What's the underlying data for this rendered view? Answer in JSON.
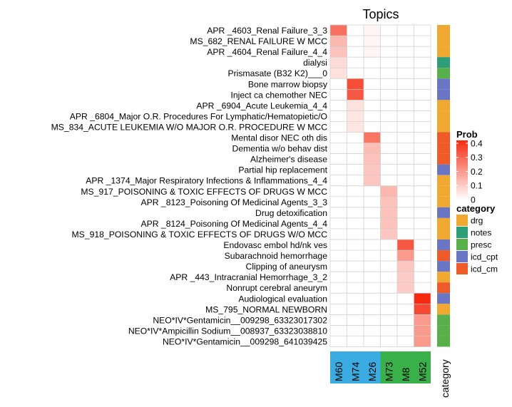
{
  "chart_data": {
    "type": "heatmap",
    "title": "Topics",
    "columns": [
      "M60",
      "M74",
      "M26",
      "M73",
      "M8",
      "M52"
    ],
    "column_groups": [
      {
        "columns": [
          "M60",
          "M74",
          "M26"
        ],
        "color": "#3aace2"
      },
      {
        "columns": [
          "M73",
          "M8",
          "M52"
        ],
        "color": "#3ab04a"
      }
    ],
    "rows": [
      {
        "label": "APR _4603_Renal Failure_3_3",
        "category": "drg",
        "values": [
          0.28,
          0,
          0.02,
          0,
          0,
          0
        ]
      },
      {
        "label": "MS_682_RENAL FAILURE W MCC",
        "category": "drg",
        "values": [
          0.14,
          0,
          0.02,
          0,
          0,
          0
        ]
      },
      {
        "label": "APR _4604_Renal Failure_4_4",
        "category": "drg",
        "values": [
          0.12,
          0,
          0.02,
          0,
          0,
          0
        ]
      },
      {
        "label": "dialysi",
        "category": "notes",
        "values": [
          0.07,
          0,
          0,
          0,
          0,
          0
        ]
      },
      {
        "label": "Prismasate (B32 K2)___0",
        "category": "presc",
        "values": [
          0.06,
          0,
          0,
          0,
          0,
          0
        ]
      },
      {
        "label": "Bone marrow biopsy",
        "category": "icd_cpt",
        "values": [
          0,
          0.35,
          0,
          0,
          0,
          0
        ]
      },
      {
        "label": "Inject ca chemother NEC",
        "category": "icd_cpt",
        "values": [
          0,
          0.33,
          0,
          0,
          0,
          0
        ]
      },
      {
        "label": "APR _6904_Acute Leukemia_4_4",
        "category": "drg",
        "values": [
          0,
          0.06,
          0,
          0,
          0,
          0
        ]
      },
      {
        "label": "APR _6804_Major O.R. Procedures For Lymphatic/Hematopietic/O",
        "category": "drg",
        "values": [
          0,
          0.05,
          0,
          0,
          0,
          0
        ]
      },
      {
        "label": "MS_834_ACUTE LEUKEMIA W/O MAJOR O.R. PROCEDURE W MCC",
        "category": "drg",
        "values": [
          0,
          0.05,
          0,
          0,
          0,
          0
        ]
      },
      {
        "label": "Mental disor NEC oth dis",
        "category": "icd_cm",
        "values": [
          0,
          0,
          0.27,
          0,
          0,
          0
        ]
      },
      {
        "label": "Dementia w/o behav dist",
        "category": "icd_cm",
        "values": [
          0,
          0,
          0.13,
          0,
          0,
          0
        ]
      },
      {
        "label": "Alzheimer's disease",
        "category": "icd_cm",
        "values": [
          0,
          0,
          0.12,
          0,
          0,
          0
        ]
      },
      {
        "label": "Partial hip replacement",
        "category": "icd_cpt",
        "values": [
          0,
          0,
          0.11,
          0,
          0,
          0
        ]
      },
      {
        "label": "APR _1374_Major Respiratory Infections & Inflammations_4_4",
        "category": "drg",
        "values": [
          0,
          0,
          0.11,
          0,
          0,
          0
        ]
      },
      {
        "label": "MS_917_POISONING & TOXIC EFFECTS OF DRUGS W MCC",
        "category": "drg",
        "values": [
          0,
          0,
          0,
          0.14,
          0,
          0
        ]
      },
      {
        "label": "APR _8123_Poisoning Of Medicinal Agents_3_3",
        "category": "drg",
        "values": [
          0,
          0,
          0,
          0.12,
          0,
          0
        ]
      },
      {
        "label": "Drug detoxification",
        "category": "icd_cpt",
        "values": [
          0,
          0,
          0,
          0.12,
          0,
          0
        ]
      },
      {
        "label": "APR _8124_Poisoning Of Medicinal Agents_4_4",
        "category": "drg",
        "values": [
          0,
          0,
          0,
          0.12,
          0,
          0
        ]
      },
      {
        "label": "MS_918_POISONING & TOXIC EFFECTS OF DRUGS W/O MCC",
        "category": "drg",
        "values": [
          0,
          0,
          0,
          0.11,
          0,
          0
        ]
      },
      {
        "label": "Endovasc embol hd/nk ves",
        "category": "icd_cpt",
        "values": [
          0,
          0,
          0,
          0,
          0.33,
          0
        ]
      },
      {
        "label": "Subarachnoid hemorrhage",
        "category": "icd_cm",
        "values": [
          0,
          0,
          0,
          0,
          0.2,
          0
        ]
      },
      {
        "label": "Clipping of aneurysm",
        "category": "icd_cpt",
        "values": [
          0,
          0,
          0,
          0,
          0.11,
          0
        ]
      },
      {
        "label": "APR _443_Intracranial Hemorrhage_3_2",
        "category": "drg",
        "values": [
          0,
          0,
          0,
          0,
          0.1,
          0
        ]
      },
      {
        "label": "Nonrupt cerebral aneurym",
        "category": "icd_cm",
        "values": [
          0,
          0,
          0,
          0,
          0.1,
          0
        ]
      },
      {
        "label": "Audiological evaluation",
        "category": "icd_cpt",
        "values": [
          0,
          0,
          0,
          0,
          0,
          0.42
        ]
      },
      {
        "label": "MS_795_NORMAL NEWBORN",
        "category": "drg",
        "values": [
          0,
          0,
          0,
          0,
          0,
          0.36
        ]
      },
      {
        "label": "NEO*IV*Gentamicin__009298_63323017302",
        "category": "presc",
        "values": [
          0,
          0,
          0,
          0,
          0,
          0.2
        ]
      },
      {
        "label": "NEO*IV*Ampicillin Sodium__008937_63323038810",
        "category": "presc",
        "values": [
          0,
          0,
          0,
          0,
          0,
          0.2
        ]
      },
      {
        "label": "NEO*IV*Gentamicin__009298_641039425",
        "category": "presc",
        "values": [
          0,
          0,
          0,
          0,
          0,
          0.2
        ]
      }
    ],
    "category_axis_label": "category",
    "legend_prob": {
      "title": "Prob",
      "ticks": [
        "0.4",
        "0.3",
        "0.2",
        "0.1",
        "0"
      ],
      "tick_values": [
        0.4,
        0.3,
        0.2,
        0.1,
        0
      ],
      "range": [
        0,
        0.42
      ]
    },
    "legend_category": {
      "title": "category",
      "items": [
        {
          "key": "drg",
          "color": "#f0a830"
        },
        {
          "key": "notes",
          "color": "#2e9e78"
        },
        {
          "key": "presc",
          "color": "#58b04a"
        },
        {
          "key": "icd_cpt",
          "color": "#6a76c4"
        },
        {
          "key": "icd_cm",
          "color": "#f05a28"
        }
      ]
    },
    "colors": {
      "low": "#ffffff",
      "high": "#f52a10",
      "grid": "#cccccc"
    }
  }
}
